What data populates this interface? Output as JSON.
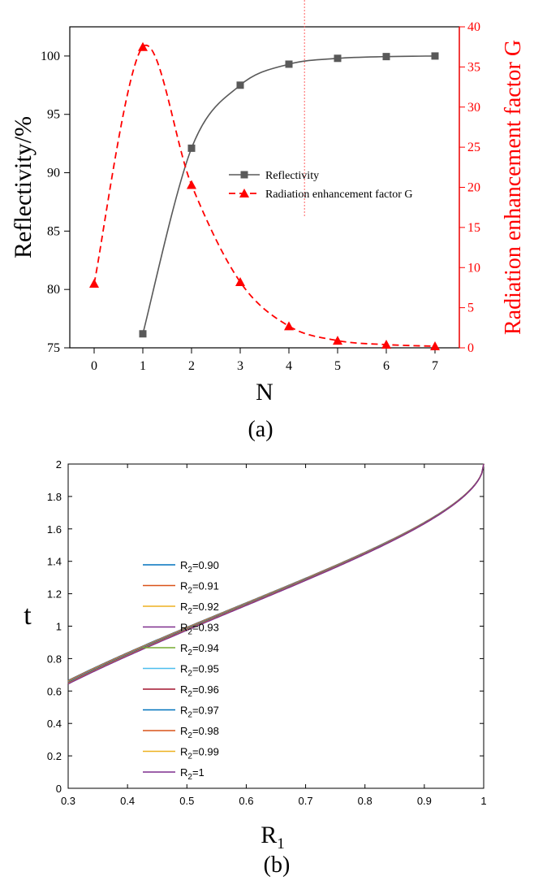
{
  "chart_data": [
    {
      "type": "line",
      "panel_label": "(a)",
      "xlabel": "N",
      "ylabel": "Reflectivity/%",
      "y2label": "Radiation enhancement factor G",
      "x_ticks": [
        0,
        1,
        2,
        3,
        4,
        5,
        6,
        7
      ],
      "y_ticks": [
        75,
        80,
        85,
        90,
        95,
        100
      ],
      "y2_ticks": [
        0,
        5,
        10,
        15,
        20,
        25,
        30,
        35,
        40
      ],
      "xlim": [
        -0.5,
        7.5
      ],
      "ylim": [
        75,
        102.5
      ],
      "y2lim": [
        0,
        40
      ],
      "legend_position": "center-right",
      "colors": {
        "reflectivity": "#595959",
        "g_factor": "#ff0000",
        "marker_line": "#ff6060"
      },
      "series": [
        {
          "name": "Reflectivity",
          "axis": "left",
          "marker": "square",
          "line_style": "solid",
          "x": [
            1,
            2,
            3,
            4,
            5,
            6,
            7
          ],
          "y": [
            76.2,
            92.1,
            97.5,
            99.3,
            99.8,
            99.95,
            100.0
          ]
        },
        {
          "name": "Radiation enhancement factor G",
          "axis": "right",
          "marker": "triangle",
          "line_style": "dashed",
          "x": [
            0,
            1,
            2,
            3,
            4,
            5,
            6,
            7
          ],
          "y": [
            8.0,
            37.5,
            20.3,
            8.2,
            2.7,
            0.9,
            0.4,
            0.2
          ]
        }
      ],
      "reference_line": {
        "x": 4.32,
        "style": "dotted"
      }
    },
    {
      "type": "line",
      "panel_label": "(b)",
      "xlabel_main": "R",
      "xlabel_sub": "1",
      "ylabel": "t",
      "xlim": [
        0.3,
        1.0
      ],
      "ylim": [
        0,
        2
      ],
      "x_ticks": [
        0.3,
        0.4,
        0.5,
        0.6,
        0.7,
        0.8,
        0.9,
        1
      ],
      "y_ticks": [
        0,
        0.2,
        0.4,
        0.6,
        0.8,
        1,
        1.2,
        1.4,
        1.6,
        1.8,
        2
      ],
      "legend_position": "center-left",
      "grid": false,
      "series": [
        {
          "label_main": "R",
          "label_sub": "2",
          "label_value": "=0.90",
          "color": "#0072bd",
          "r2": 0.9
        },
        {
          "label_main": "R",
          "label_sub": "2",
          "label_value": "=0.91",
          "color": "#d95319",
          "r2": 0.91
        },
        {
          "label_main": "R",
          "label_sub": "2",
          "label_value": "=0.92",
          "color": "#edb120",
          "r2": 0.92
        },
        {
          "label_main": "R",
          "label_sub": "2",
          "label_value": "=0.93",
          "color": "#7e2f8e",
          "r2": 0.93
        },
        {
          "label_main": "R",
          "label_sub": "2",
          "label_value": "=0.94",
          "color": "#77ac30",
          "r2": 0.94
        },
        {
          "label_main": "R",
          "label_sub": "2",
          "label_value": "=0.95",
          "color": "#4dbeee",
          "r2": 0.95
        },
        {
          "label_main": "R",
          "label_sub": "2",
          "label_value": "=0.96",
          "color": "#a2142f",
          "r2": 0.96
        },
        {
          "label_main": "R",
          "label_sub": "2",
          "label_value": "=0.97",
          "color": "#0072bd",
          "r2": 0.97
        },
        {
          "label_main": "R",
          "label_sub": "2",
          "label_value": "=0.98",
          "color": "#d95319",
          "r2": 0.98
        },
        {
          "label_main": "R",
          "label_sub": "2",
          "label_value": "=0.99",
          "color": "#edb120",
          "r2": 0.99
        },
        {
          "label_main": "R",
          "label_sub": "2",
          "label_value": "=1",
          "color": "#7e2f8e",
          "r2": 1.0
        }
      ]
    }
  ]
}
